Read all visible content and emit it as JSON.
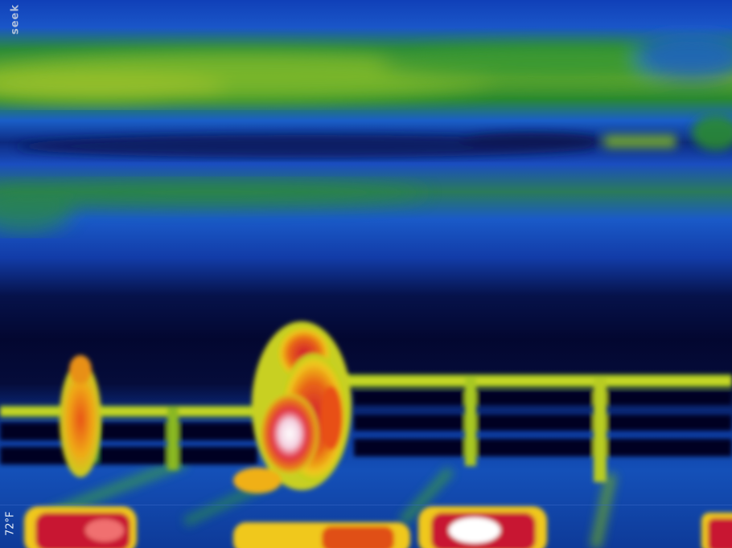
{
  "image": {
    "kind": "thermal-camera-frame",
    "palette": "rainbow-iron",
    "palette_colors": [
      "#04042a",
      "#0a2a8c",
      "#1a5fd0",
      "#2a9a3a",
      "#b8d21e",
      "#f0c81a",
      "#e8501a",
      "#c81830",
      "#ffffff"
    ]
  },
  "overlay": {
    "brand_text": "seek",
    "temperature_reading": "72°F"
  }
}
